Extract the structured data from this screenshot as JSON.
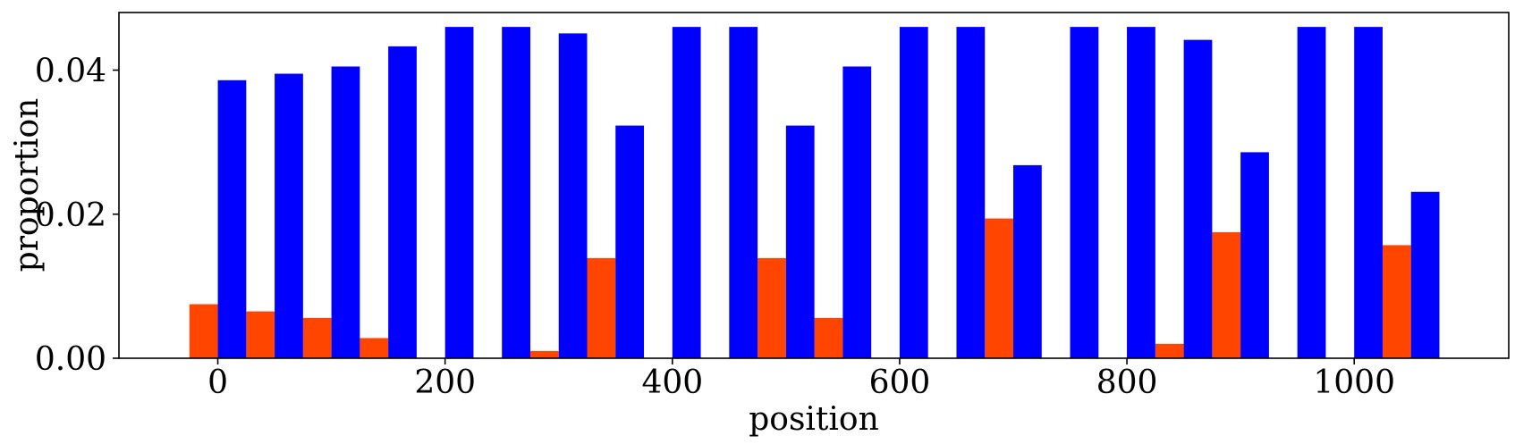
{
  "chart_data": {
    "type": "bar",
    "title": "",
    "xlabel": "position",
    "ylabel": "proportion",
    "xlim": [
      -87,
      1136
    ],
    "ylim": [
      0,
      0.048
    ],
    "x_ticks": [
      0,
      200,
      400,
      600,
      800,
      1000
    ],
    "x_tick_labels": [
      "0",
      "200",
      "400",
      "600",
      "800",
      "1000"
    ],
    "y_ticks": [
      0,
      0.02,
      0.04
    ],
    "y_tick_labels": [
      "0.00",
      "0.02",
      "0.04"
    ],
    "grid": false,
    "legend": "none",
    "bar_width": 25,
    "x": [
      0,
      50,
      100,
      150,
      200,
      250,
      300,
      350,
      400,
      450,
      500,
      550,
      600,
      650,
      700,
      750,
      800,
      850,
      900,
      950,
      1000,
      1050
    ],
    "series": [
      {
        "color": "#ff4500",
        "offset": "left",
        "values": [
          0.0075,
          0.0065,
          0.0056,
          0.0028,
          0.0,
          0.0,
          0.001,
          0.0139,
          0.0,
          0.0,
          0.0139,
          0.0056,
          0.0,
          0.0,
          0.0194,
          0.0,
          0.0,
          0.002,
          0.0175,
          0.0,
          0.0,
          0.0157
        ]
      },
      {
        "color": "#0000ff",
        "offset": "right",
        "values": [
          0.0386,
          0.0395,
          0.0405,
          0.0433,
          0.046,
          0.046,
          0.0451,
          0.0323,
          0.046,
          0.046,
          0.0323,
          0.0405,
          0.046,
          0.046,
          0.0268,
          0.046,
          0.046,
          0.0442,
          0.0286,
          0.046,
          0.046,
          0.0231
        ]
      }
    ]
  }
}
